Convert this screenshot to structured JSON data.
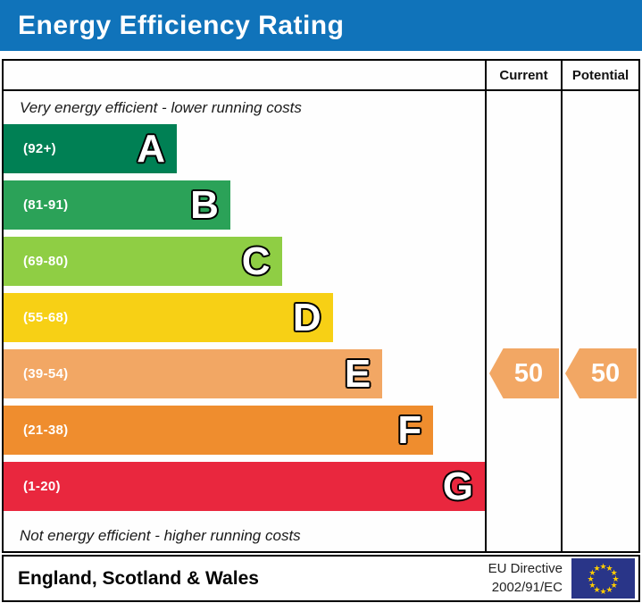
{
  "title": "Energy Efficiency Rating",
  "columns": {
    "current": "Current",
    "potential": "Potential"
  },
  "top_note": "Very energy efficient - lower running costs",
  "bottom_note": "Not energy efficient - higher running costs",
  "chart_data": {
    "type": "bar",
    "title": "Energy Efficiency Rating",
    "categories": [
      "A",
      "B",
      "C",
      "D",
      "E",
      "F",
      "G"
    ],
    "band_ranges": [
      "(92+)",
      "(81-91)",
      "(69-80)",
      "(55-68)",
      "(39-54)",
      "(21-38)",
      "(1-20)"
    ],
    "band_colors": [
      "#008054",
      "#2ba258",
      "#8fce44",
      "#f7d015",
      "#f2a764",
      "#ef8d2e",
      "#e9273e"
    ],
    "current_rating": 50,
    "current_band": "E",
    "potential_rating": 50,
    "potential_band": "E"
  },
  "bands": [
    {
      "letter": "A",
      "range": "(92+)",
      "color": "#008054",
      "width_pct": 36
    },
    {
      "letter": "B",
      "range": "(81-91)",
      "color": "#2ba258",
      "width_pct": 47.1
    },
    {
      "letter": "C",
      "range": "(69-80)",
      "color": "#8fce44",
      "width_pct": 57.8
    },
    {
      "letter": "D",
      "range": "(55-68)",
      "color": "#f7d015",
      "width_pct": 68.4
    },
    {
      "letter": "E",
      "range": "(39-54)",
      "color": "#f2a764",
      "width_pct": 78.7
    },
    {
      "letter": "F",
      "range": "(21-38)",
      "color": "#ef8d2e",
      "width_pct": 89.3
    },
    {
      "letter": "G",
      "range": "(1-20)",
      "color": "#e9273e",
      "width_pct": 100
    }
  ],
  "ratings": {
    "current": {
      "value": "50",
      "band": "E",
      "color": "#f2a764"
    },
    "potential": {
      "value": "50",
      "band": "E",
      "color": "#f2a764"
    }
  },
  "footer": {
    "region": "England, Scotland & Wales",
    "directive_line1": "EU Directive",
    "directive_line2": "2002/91/EC",
    "flag_bg": "#293588",
    "flag_star_color": "#ffcc00"
  },
  "theme": {
    "header_blue": "#1073ba",
    "border_black": "#000000"
  }
}
